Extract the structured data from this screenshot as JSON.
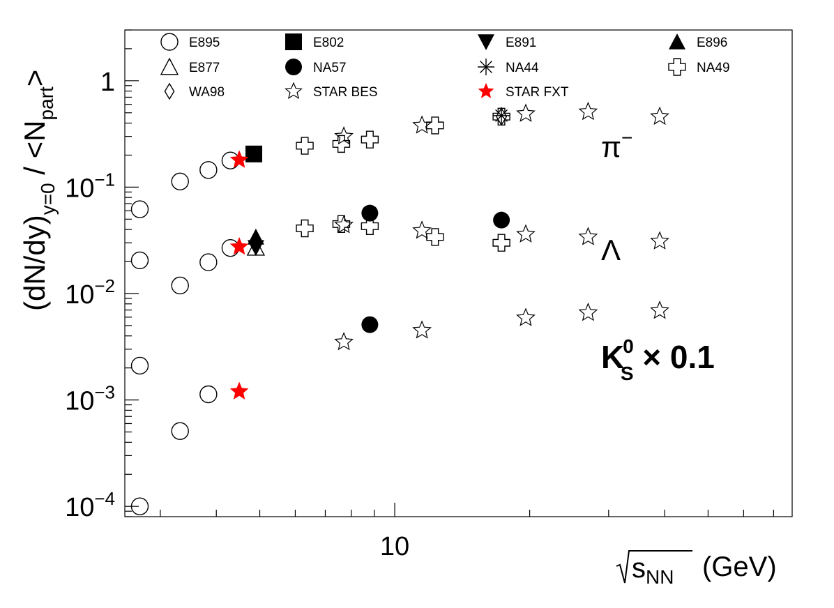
{
  "chart_data": {
    "type": "scatter",
    "title": "",
    "xlabel": {
      "root_text": "s",
      "subscript": "NN",
      "unit": "(GeV)"
    },
    "ylabel": {
      "open": "(dN/dy)",
      "subscript": "y=0",
      "slash": " / ",
      "lt": "<N",
      "part": "part",
      "gt": ">"
    },
    "xscale": "log",
    "yscale": "log",
    "xlim": [
      2.5,
      77
    ],
    "ylim": [
      8e-05,
      3
    ],
    "x_tick_labels": [
      "10"
    ],
    "y_tick_labels": [
      {
        "value": 1,
        "base": "1",
        "exp": ""
      },
      {
        "value": 0.1,
        "base": "10",
        "exp": "−1"
      },
      {
        "value": 0.01,
        "base": "10",
        "exp": "−2"
      },
      {
        "value": 0.001,
        "base": "10",
        "exp": "−3"
      },
      {
        "value": 0.0001,
        "base": "10",
        "exp": "−4"
      }
    ],
    "grid": false,
    "legend_position": "top",
    "annotations": [
      {
        "id": "pi",
        "text": "π",
        "sup": "−",
        "near": "upper band"
      },
      {
        "id": "lambda",
        "text": "Λ",
        "near": "middle band"
      },
      {
        "id": "k0s",
        "text": "K",
        "sup": "0",
        "sub": "S",
        "suffix": " × 0.1",
        "near": "lower band"
      }
    ],
    "series": [
      {
        "name": "E895",
        "marker": "open-circle",
        "color": "#000000",
        "points": [
          [
            2.7,
            0.062
          ],
          [
            3.32,
            0.113
          ],
          [
            3.84,
            0.145
          ],
          [
            4.3,
            0.178
          ],
          [
            2.7,
            0.0205
          ],
          [
            3.32,
            0.0119
          ],
          [
            3.84,
            0.0197
          ],
          [
            4.3,
            0.0268
          ],
          [
            2.7,
            0.0021
          ],
          [
            3.32,
            0.00051
          ],
          [
            3.84,
            0.00113
          ],
          [
            2.7,
            0.0001
          ]
        ]
      },
      {
        "name": "E802",
        "marker": "filled-square",
        "color": "#000000",
        "points": [
          [
            4.85,
            0.205
          ]
        ]
      },
      {
        "name": "E891",
        "marker": "filled-triangle-down",
        "color": "#000000",
        "points": [
          [
            4.9,
            0.027
          ]
        ]
      },
      {
        "name": "E896",
        "marker": "filled-triangle-up",
        "color": "#000000",
        "points": [
          [
            4.9,
            0.034
          ]
        ]
      },
      {
        "name": "E877",
        "marker": "open-triangle-up",
        "color": "#000000",
        "points": [
          [
            4.9,
            0.027
          ]
        ]
      },
      {
        "name": "NA57",
        "marker": "filled-circle",
        "color": "#000000",
        "points": [
          [
            8.8,
            0.057
          ],
          [
            17.3,
            0.049
          ],
          [
            8.8,
            0.0051
          ]
        ]
      },
      {
        "name": "NA44",
        "marker": "asterisk",
        "color": "#000000",
        "points": [
          [
            17.3,
            0.47
          ]
        ]
      },
      {
        "name": "NA49",
        "marker": "open-cross",
        "color": "#000000",
        "points": [
          [
            6.3,
            0.245
          ],
          [
            7.6,
            0.255
          ],
          [
            8.8,
            0.28
          ],
          [
            12.3,
            0.38
          ],
          [
            17.3,
            0.46
          ],
          [
            6.3,
            0.041
          ],
          [
            7.6,
            0.045
          ],
          [
            8.8,
            0.043
          ],
          [
            12.3,
            0.034
          ],
          [
            17.3,
            0.03
          ]
        ]
      },
      {
        "name": "WA98",
        "marker": "open-diamond",
        "color": "#000000",
        "points": [
          [
            17.3,
            0.46
          ]
        ]
      },
      {
        "name": "STAR BES",
        "marker": "open-star",
        "color": "#000000",
        "points": [
          [
            7.7,
            0.3
          ],
          [
            11.5,
            0.38
          ],
          [
            19.6,
            0.49
          ],
          [
            27,
            0.51
          ],
          [
            39,
            0.46
          ],
          [
            7.7,
            0.044
          ],
          [
            11.5,
            0.039
          ],
          [
            19.6,
            0.036
          ],
          [
            27,
            0.034
          ],
          [
            39,
            0.031
          ],
          [
            7.7,
            0.0035
          ],
          [
            11.5,
            0.0045
          ],
          [
            19.6,
            0.0059
          ],
          [
            27,
            0.0066
          ],
          [
            39,
            0.0069
          ]
        ]
      },
      {
        "name": "STAR FXT",
        "marker": "filled-star",
        "color": "#ff0000",
        "points": [
          [
            4.5,
            0.18
          ],
          [
            4.5,
            0.0275
          ],
          [
            4.5,
            0.0012
          ]
        ]
      }
    ]
  }
}
